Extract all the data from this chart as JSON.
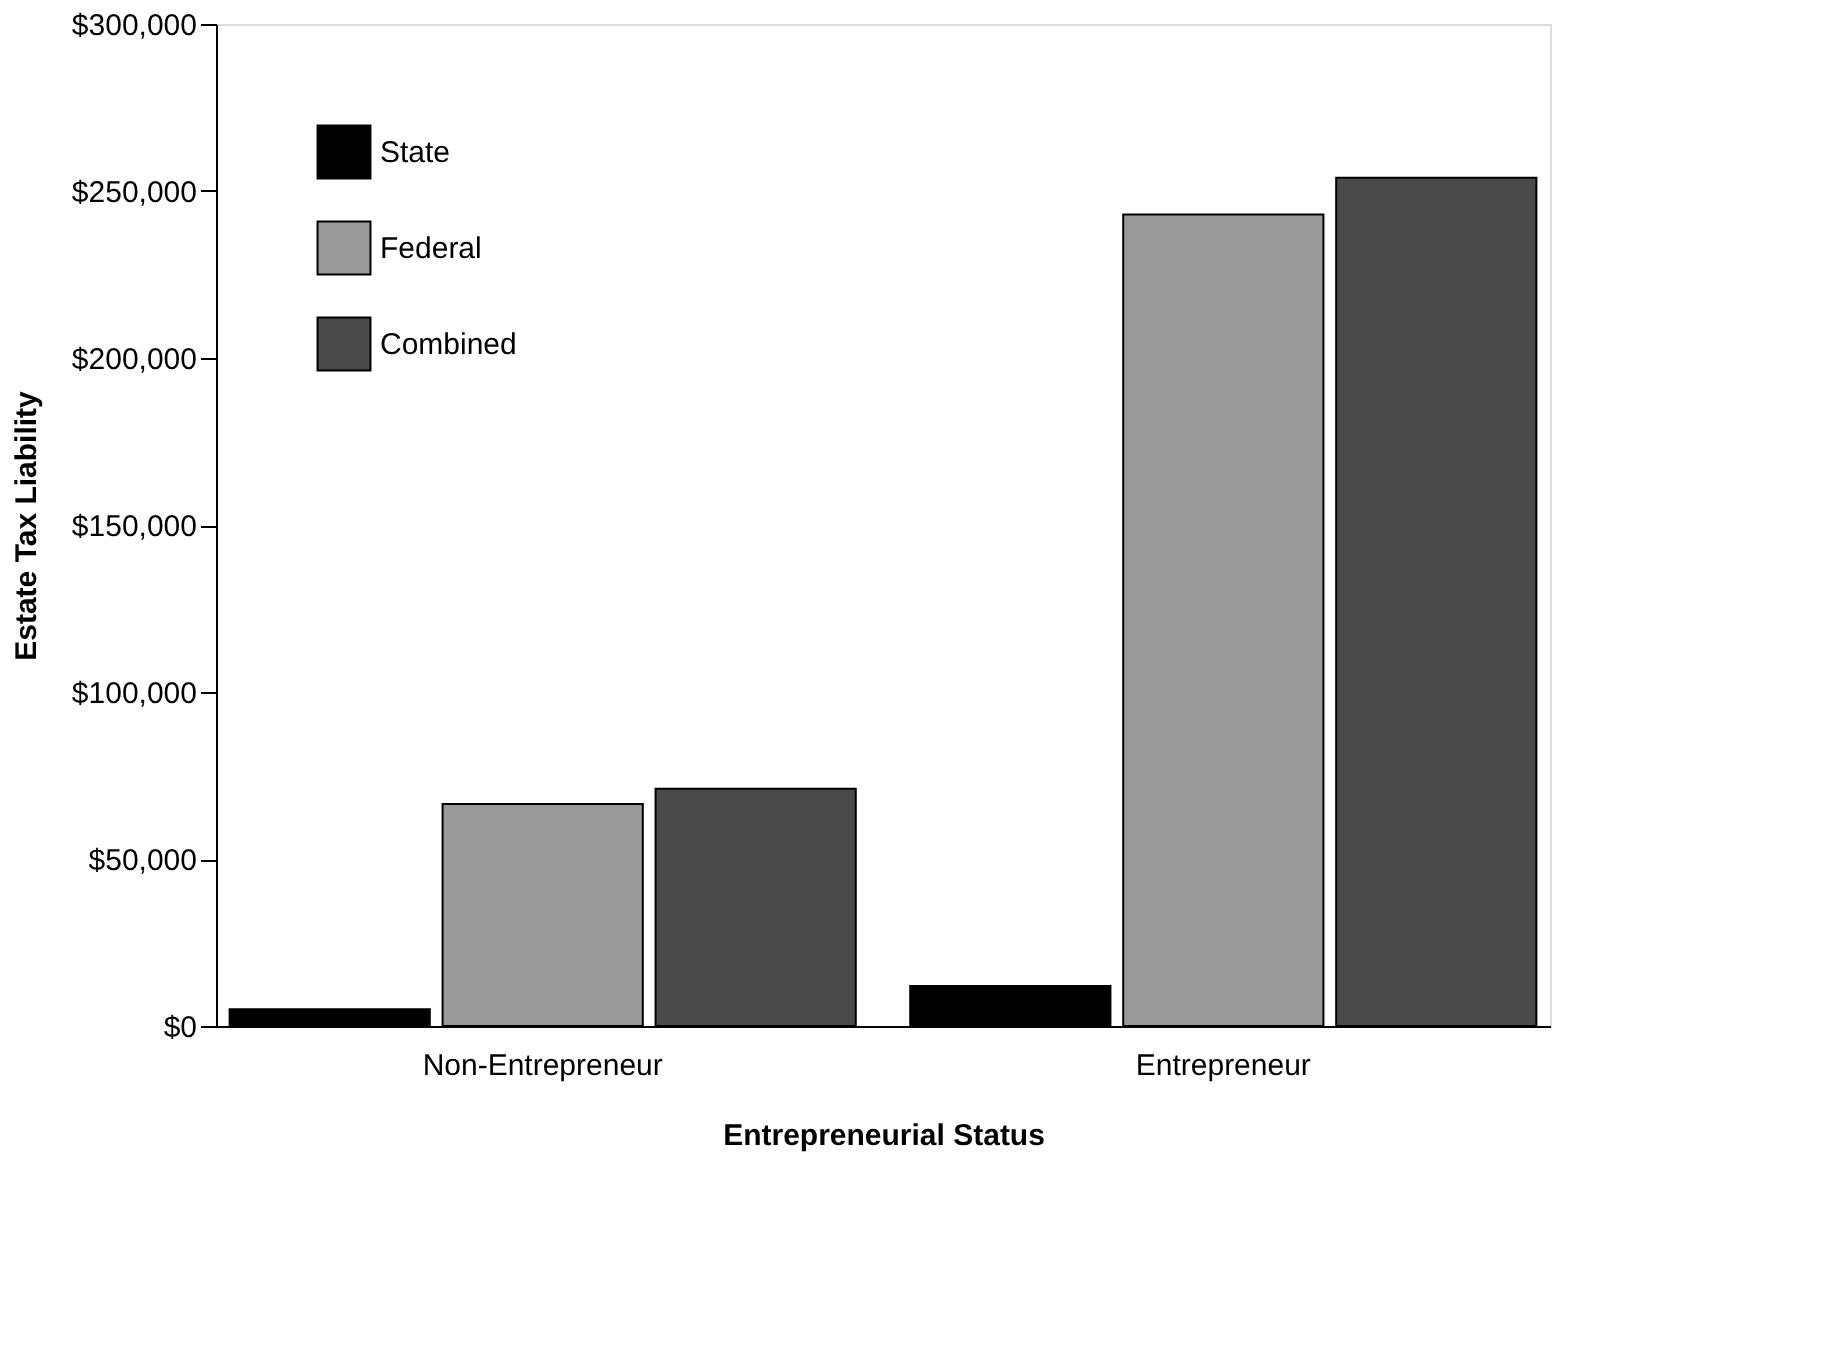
{
  "chart_data": {
    "type": "bar",
    "xlabel": "Entrepreneurial Status",
    "ylabel": "Estate Tax Liability",
    "categories": [
      "Non-Entrepreneur",
      "Entrepreneur"
    ],
    "series": [
      {
        "name": "State",
        "color": "#000000",
        "values": [
          5000,
          12000
        ]
      },
      {
        "name": "Federal",
        "color": "#9a9a9a",
        "values": [
          66500,
          243000
        ]
      },
      {
        "name": "Combined",
        "color": "#4a4a4a",
        "values": [
          71000,
          254000
        ]
      }
    ],
    "ylim": [
      0,
      300000
    ],
    "yticks": [
      {
        "value": 0,
        "label": "$0"
      },
      {
        "value": 50000,
        "label": "$50,000"
      },
      {
        "value": 100000,
        "label": "$100,000"
      },
      {
        "value": 150000,
        "label": "$150,000"
      },
      {
        "value": 200000,
        "label": "$200,000"
      },
      {
        "value": 250000,
        "label": "$250,000"
      },
      {
        "value": 300000,
        "label": "$300,000"
      }
    ],
    "grid": false,
    "legend": "top left"
  }
}
